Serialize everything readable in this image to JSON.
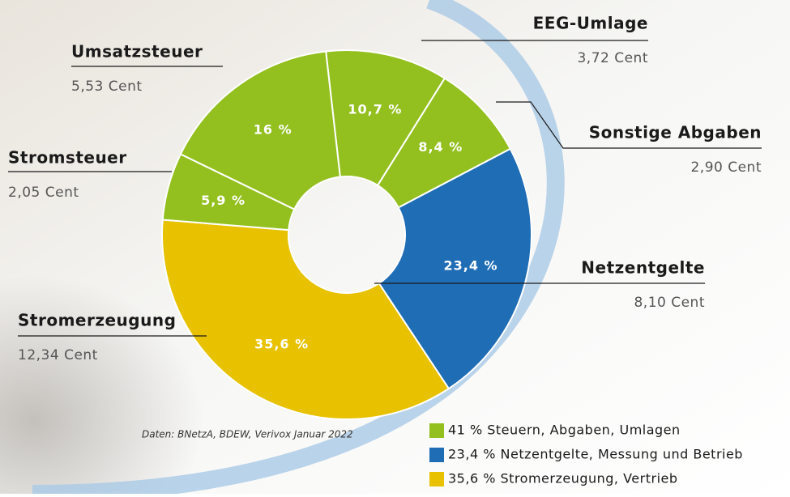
{
  "chart_data": {
    "type": "pie",
    "categories": [
      "EEG-Umlage",
      "Sonstige Abgaben",
      "Netzentgelte",
      "Stromerzeugung",
      "Stromsteuer",
      "Umsatzsteuer"
    ],
    "values": [
      10.7,
      8.4,
      23.4,
      35.6,
      5.9,
      16
    ],
    "value_labels": [
      "10,7 %",
      "8,4 %",
      "23,4 %",
      "35,6 %",
      "5,9 %",
      "16 %"
    ],
    "detail_labels": [
      "3,72 Cent",
      "2,90 Cent",
      "8,10 Cent",
      "12,34 Cent",
      "2,05 Cent",
      "5,53 Cent"
    ],
    "colors": [
      "#93c01f",
      "#93c01f",
      "#1f6db5",
      "#e8c200",
      "#93c01f",
      "#93c01f"
    ],
    "source": "Daten: BNetzA, BDEW, Verivox Januar 2022",
    "legend": [
      {
        "label": "41 % Steuern, Abgaben, Umlagen",
        "color": "#93c01f"
      },
      {
        "label": "23,4 % Netzentgelte, Messung und Betrieb",
        "color": "#1f6db5"
      },
      {
        "label": "35,6 % Stromerzeugung, Vertrieb",
        "color": "#e8c200"
      }
    ]
  }
}
